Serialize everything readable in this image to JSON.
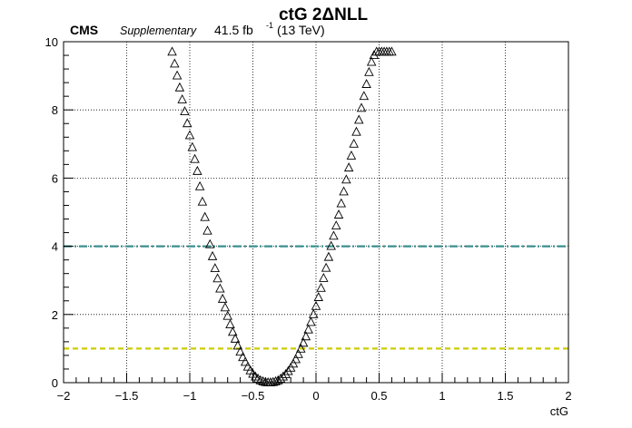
{
  "header": {
    "cms": "CMS",
    "supplementary": "Supplementary",
    "lumi_main": "41.5 fb",
    "lumi_sup": "-1",
    "energy": "(13 TeV)"
  },
  "chart_data": {
    "type": "scatter",
    "title": "ctG 2ΔNLL",
    "xlabel": "ctG",
    "ylabel": "",
    "xlim": [
      -2,
      2
    ],
    "ylim": [
      0,
      10
    ],
    "xticks": [
      -2,
      -1.5,
      -1,
      -0.5,
      0,
      0.5,
      1,
      1.5,
      2
    ],
    "xtick_labels": [
      "−2",
      "−1.5",
      "−1",
      "−0.5",
      "0",
      "0.5",
      "1",
      "1.5",
      "2"
    ],
    "yticks": [
      0,
      2,
      4,
      6,
      8,
      10
    ],
    "ytick_labels": [
      "0",
      "2",
      "4",
      "6",
      "8",
      "10"
    ],
    "grid": true,
    "marker": "open-triangle",
    "series": [
      {
        "x": [
          -1.14,
          -1.12,
          -1.1,
          -1.08,
          -1.06,
          -1.04,
          -1.02,
          -1.0,
          -0.98,
          -0.96,
          -0.94,
          -0.92,
          -0.9,
          -0.88,
          -0.86,
          -0.84,
          -0.82,
          -0.8,
          -0.78,
          -0.76,
          -0.74,
          -0.72,
          -0.7,
          -0.68,
          -0.66,
          -0.64,
          -0.62,
          -0.6,
          -0.58,
          -0.56,
          -0.54,
          -0.52,
          -0.5,
          -0.48,
          -0.46,
          -0.44,
          -0.42,
          -0.4,
          -0.38,
          -0.36,
          -0.34,
          -0.32,
          -0.3,
          -0.28,
          -0.26,
          -0.24,
          -0.22,
          -0.2,
          -0.18,
          -0.16,
          -0.14,
          -0.12,
          -0.1,
          -0.08,
          -0.06,
          -0.04,
          -0.02,
          0.0,
          0.02,
          0.04,
          0.06,
          0.08,
          0.1,
          0.12,
          0.14,
          0.16,
          0.18,
          0.2,
          0.22,
          0.24,
          0.26,
          0.28,
          0.3,
          0.32,
          0.34,
          0.36,
          0.38,
          0.4,
          0.42,
          0.44,
          0.46,
          0.48,
          0.5,
          0.52,
          0.54,
          0.56,
          0.58,
          0.6
        ],
        "y": [
          9.7,
          9.35,
          9.0,
          8.65,
          8.3,
          7.95,
          7.6,
          7.25,
          6.9,
          6.55,
          6.2,
          5.75,
          5.3,
          4.85,
          4.45,
          4.05,
          3.7,
          3.35,
          3.05,
          2.75,
          2.45,
          2.2,
          1.95,
          1.7,
          1.48,
          1.28,
          1.08,
          0.9,
          0.74,
          0.6,
          0.46,
          0.35,
          0.25,
          0.17,
          0.11,
          0.06,
          0.03,
          0.01,
          0.0,
          0.0,
          0.01,
          0.03,
          0.06,
          0.11,
          0.17,
          0.24,
          0.33,
          0.43,
          0.55,
          0.68,
          0.83,
          0.99,
          1.16,
          1.35,
          1.55,
          1.77,
          2.0,
          2.24,
          2.5,
          2.77,
          3.06,
          3.36,
          3.68,
          4.0,
          4.3,
          4.6,
          4.92,
          5.25,
          5.6,
          5.95,
          6.3,
          6.65,
          7.0,
          7.35,
          7.7,
          8.05,
          8.4,
          8.75,
          9.1,
          9.4,
          9.6,
          9.7,
          9.7,
          9.7,
          9.7,
          9.7,
          9.7,
          9.7
        ]
      }
    ],
    "hlines": [
      {
        "y": 4,
        "color": "#3a8f8f",
        "style": "dash-dot"
      },
      {
        "y": 1,
        "color": "#cccc00",
        "style": "dashed"
      }
    ]
  }
}
